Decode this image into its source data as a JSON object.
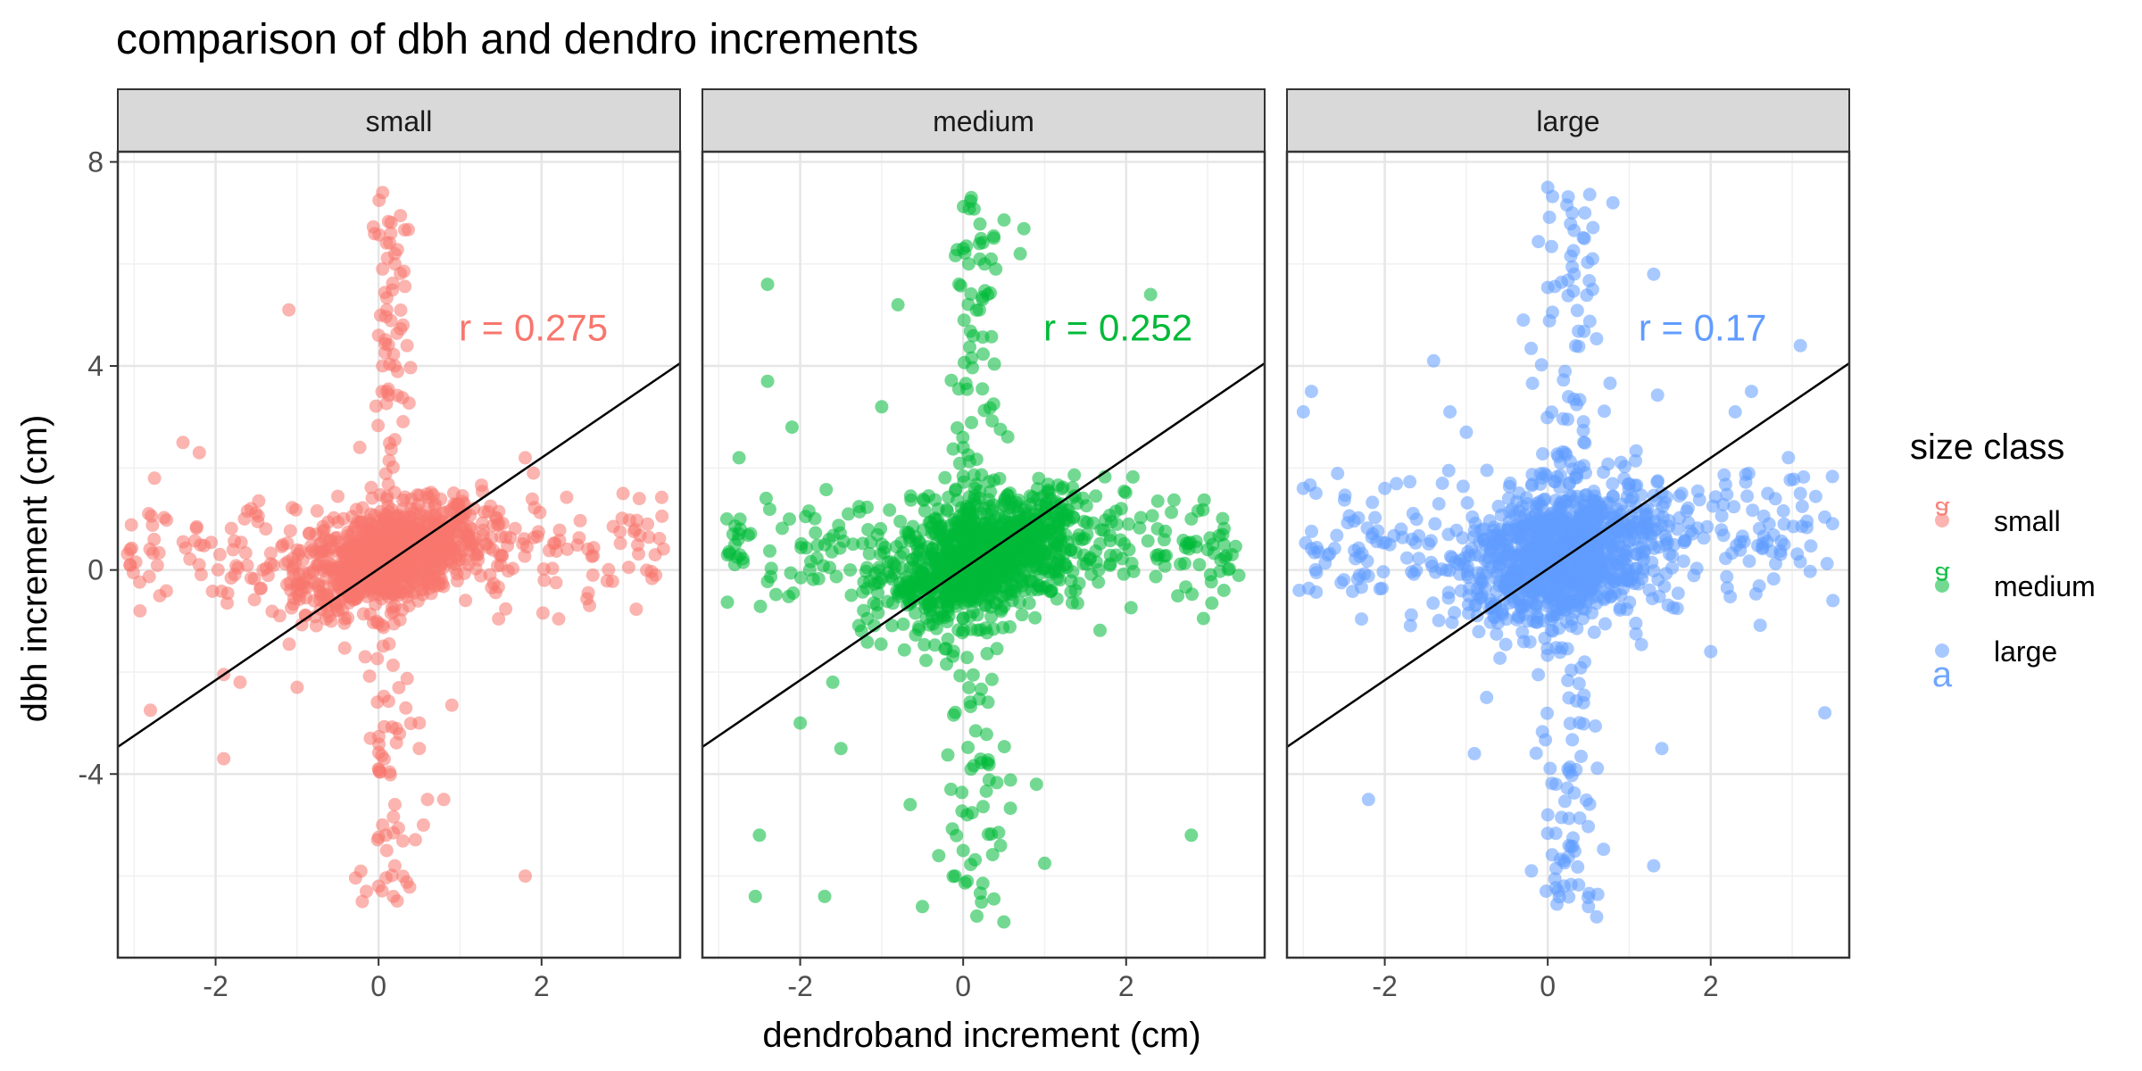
{
  "chart_data": {
    "type": "scatter",
    "title": "comparison of dbh and dendro increments",
    "xlabel": "dendroband increment (cm)",
    "ylabel": "dbh increment (cm)",
    "xlim": [
      -3.2,
      3.7
    ],
    "ylim": [
      -7.6,
      8.2
    ],
    "x_ticks": [
      -2,
      0,
      2
    ],
    "x_tick_labels": [
      "-2",
      "0",
      "2"
    ],
    "y_ticks": [
      -4,
      0,
      4,
      8
    ],
    "y_tick_labels": [
      "-4",
      "0",
      "4",
      "8"
    ],
    "grid": true,
    "legend": {
      "title": "size class",
      "position": "right",
      "entries": [
        {
          "label": "small",
          "color": "#F8766D"
        },
        {
          "label": "medium",
          "color": "#00BA38"
        },
        {
          "label": "large",
          "color": "#619CFF"
        }
      ]
    },
    "panels": [
      {
        "name": "small",
        "color": "#F8766D",
        "annotation": "r = 0.275",
        "annotation_pos": [
          1.9,
          4.5
        ],
        "fit_line": {
          "intercept": 0.02,
          "slope": 1.09
        },
        "core": {
          "n": 900,
          "x_center": 0.15,
          "y_center": 0.25,
          "x_sd": 0.55,
          "y_sd": 0.45,
          "slope": 0.45
        },
        "cross_h": {
          "n": 220,
          "x_range": [
            -3.1,
            3.5
          ],
          "y_center": 0.35,
          "y_sd": 0.5
        },
        "cross_v": {
          "n": 130,
          "x_center": 0.15,
          "x_sd": 0.13,
          "y_range": [
            -6.5,
            7.4
          ]
        },
        "points": [
          [
            -3.05,
            0.4
          ],
          [
            -3.05,
            0.1
          ],
          [
            -2.75,
            1.8
          ],
          [
            -2.8,
            -2.75
          ],
          [
            -2.4,
            2.5
          ],
          [
            -2.2,
            2.3
          ],
          [
            -1.9,
            -3.7
          ],
          [
            -1.1,
            5.1
          ],
          [
            -1.0,
            -2.3
          ],
          [
            -1.7,
            -2.2
          ],
          [
            -1.9,
            -2.05
          ],
          [
            0.05,
            7.4
          ],
          [
            0.15,
            6.6
          ],
          [
            0.2,
            6.2
          ],
          [
            0.2,
            6.0
          ],
          [
            0.05,
            5.9
          ],
          [
            0.1,
            5.1
          ],
          [
            0.3,
            4.8
          ],
          [
            0.0,
            4.6
          ],
          [
            0.05,
            4.0
          ],
          [
            0.2,
            4.0
          ],
          [
            0.1,
            3.5
          ],
          [
            0.35,
            4.4
          ],
          [
            0.05,
            -5.0
          ],
          [
            0.1,
            -5.5
          ],
          [
            0.2,
            -5.8
          ],
          [
            0.0,
            -6.2
          ],
          [
            -0.2,
            -6.5
          ],
          [
            -0.15,
            -6.3
          ],
          [
            0.55,
            -5.0
          ],
          [
            0.6,
            -4.5
          ],
          [
            0.2,
            -4.6
          ],
          [
            0.9,
            -2.65
          ],
          [
            1.8,
            -6.0
          ],
          [
            1.8,
            2.2
          ],
          [
            1.9,
            1.9
          ],
          [
            3.3,
            0.9
          ],
          [
            3.4,
            -0.1
          ],
          [
            3.0,
            1.5
          ],
          [
            3.2,
            1.4
          ],
          [
            0.5,
            -3.0
          ],
          [
            0.5,
            -3.5
          ],
          [
            0.8,
            -4.5
          ],
          [
            -0.1,
            -3.3
          ],
          [
            0.0,
            -3.9
          ]
        ]
      },
      {
        "name": "medium",
        "color": "#00BA38",
        "annotation": "r = 0.252",
        "annotation_pos": [
          1.9,
          4.5
        ],
        "fit_line": {
          "intercept": 0.02,
          "slope": 1.09
        },
        "core": {
          "n": 950,
          "x_center": 0.25,
          "y_center": 0.2,
          "x_sd": 0.6,
          "y_sd": 0.55,
          "slope": 0.45
        },
        "cross_h": {
          "n": 230,
          "x_range": [
            -2.9,
            3.4
          ],
          "y_center": 0.45,
          "y_sd": 0.55
        },
        "cross_v": {
          "n": 150,
          "x_center": 0.15,
          "x_sd": 0.18,
          "y_range": [
            -6.8,
            7.3
          ]
        },
        "points": [
          [
            -2.4,
            5.6
          ],
          [
            -2.4,
            3.7
          ],
          [
            -2.75,
            2.2
          ],
          [
            -2.5,
            -5.2
          ],
          [
            -2.55,
            -6.4
          ],
          [
            -1.7,
            -6.4
          ],
          [
            -0.8,
            5.2
          ],
          [
            -0.5,
            -6.6
          ],
          [
            -0.65,
            -4.6
          ],
          [
            0.1,
            7.3
          ],
          [
            0.0,
            6.3
          ],
          [
            0.2,
            6.4
          ],
          [
            0.4,
            5.9
          ],
          [
            0.3,
            5.4
          ],
          [
            0.7,
            6.2
          ],
          [
            0.2,
            5.1
          ],
          [
            2.3,
            5.4
          ],
          [
            2.8,
            -5.2
          ],
          [
            1.0,
            -5.75
          ],
          [
            0.5,
            -6.9
          ],
          [
            0.05,
            -6.1
          ],
          [
            -0.3,
            -5.6
          ],
          [
            0.0,
            -5.5
          ],
          [
            0.05,
            -4.8
          ],
          [
            -0.15,
            -4.3
          ],
          [
            0.9,
            -4.2
          ],
          [
            -1.5,
            -3.5
          ],
          [
            -1.6,
            -2.2
          ],
          [
            -2.0,
            -3.0
          ],
          [
            3.3,
            0.3
          ],
          [
            3.2,
            0.5
          ],
          [
            3.0,
            0.4
          ],
          [
            3.2,
            -0.4
          ],
          [
            2.8,
            1.0
          ],
          [
            2.4,
            0.3
          ],
          [
            -2.9,
            1.0
          ],
          [
            -2.8,
            0.5
          ],
          [
            -2.7,
            0.15
          ],
          [
            -2.1,
            2.8
          ],
          [
            -1.0,
            3.2
          ]
        ]
      },
      {
        "name": "large",
        "color": "#619CFF",
        "annotation": "r = 0.17",
        "annotation_pos": [
          1.9,
          4.5
        ],
        "fit_line": {
          "intercept": 0.02,
          "slope": 1.09
        },
        "core": {
          "n": 950,
          "x_center": 0.2,
          "y_center": 0.3,
          "x_sd": 0.6,
          "y_sd": 0.65,
          "slope": 0.3
        },
        "cross_h": {
          "n": 230,
          "x_range": [
            -3.0,
            3.5
          ],
          "y_center": 0.5,
          "y_sd": 0.7
        },
        "cross_v": {
          "n": 170,
          "x_center": 0.25,
          "x_sd": 0.2,
          "y_range": [
            -6.8,
            7.6
          ]
        },
        "points": [
          [
            -3.0,
            3.1
          ],
          [
            -2.9,
            3.5
          ],
          [
            -3.0,
            1.6
          ],
          [
            -3.05,
            -0.4
          ],
          [
            -2.2,
            -4.5
          ],
          [
            -1.4,
            4.1
          ],
          [
            -1.2,
            3.1
          ],
          [
            -1.0,
            2.7
          ],
          [
            0.0,
            7.5
          ],
          [
            0.8,
            7.2
          ],
          [
            0.3,
            7.0
          ],
          [
            0.45,
            6.5
          ],
          [
            0.55,
            6.1
          ],
          [
            0.55,
            5.5
          ],
          [
            1.3,
            5.8
          ],
          [
            -0.3,
            4.9
          ],
          [
            3.1,
            4.4
          ],
          [
            2.5,
            3.5
          ],
          [
            2.3,
            3.1
          ],
          [
            3.5,
            -0.6
          ],
          [
            3.4,
            -2.8
          ],
          [
            2.0,
            -1.6
          ],
          [
            1.4,
            -3.5
          ],
          [
            1.3,
            -5.8
          ],
          [
            0.6,
            -6.8
          ],
          [
            0.5,
            -6.6
          ],
          [
            0.2,
            -5.7
          ],
          [
            -0.2,
            -5.9
          ],
          [
            0.0,
            -4.8
          ],
          [
            0.1,
            -4.2
          ],
          [
            -0.75,
            -2.5
          ],
          [
            -0.9,
            -3.6
          ],
          [
            3.1,
            1.5
          ],
          [
            2.7,
            1.5
          ],
          [
            2.9,
            0.9
          ],
          [
            -2.0,
            1.6
          ],
          [
            -1.8,
            0.8
          ]
        ]
      }
    ]
  }
}
